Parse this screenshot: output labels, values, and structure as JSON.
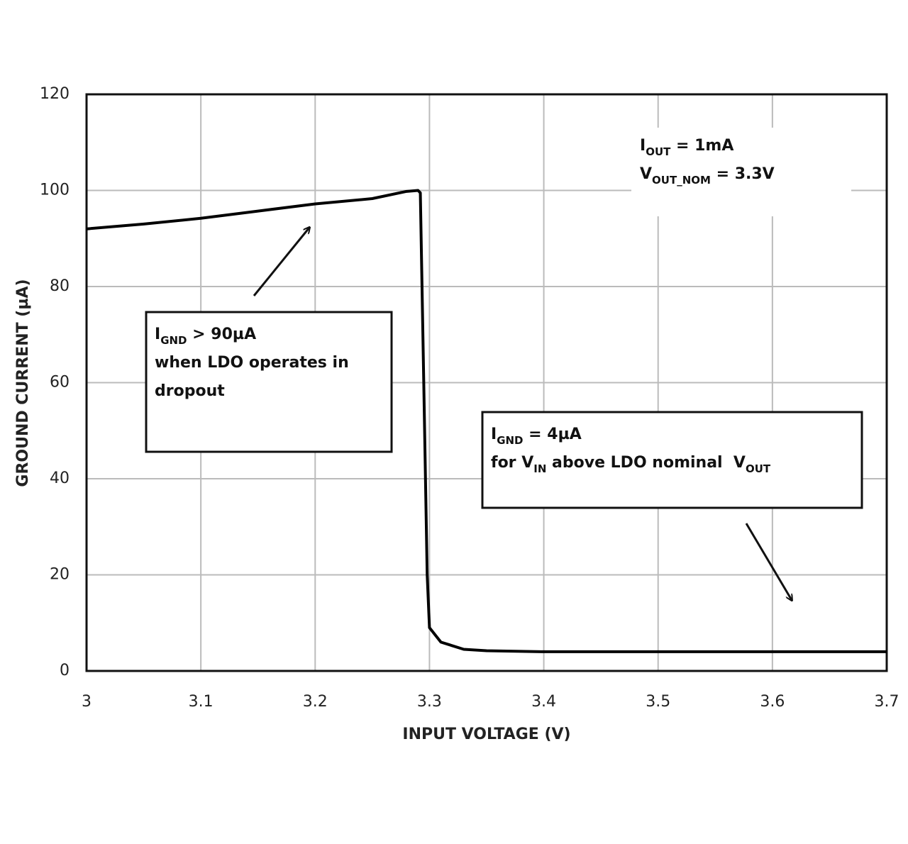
{
  "chart_data": {
    "type": "line",
    "x_label": "INPUT VOLTAGE (V)",
    "y_label": "GROUND CURRENT (µA)",
    "x": [
      3.0,
      3.05,
      3.1,
      3.15,
      3.2,
      3.25,
      3.28,
      3.29,
      3.292,
      3.295,
      3.298,
      3.3,
      3.31,
      3.33,
      3.35,
      3.4,
      3.5,
      3.6,
      3.7
    ],
    "values": [
      92,
      93,
      94.2,
      95.7,
      97.2,
      98.3,
      99.8,
      100,
      99.5,
      60,
      20,
      9,
      6,
      4.5,
      4.2,
      4,
      4,
      4,
      4
    ],
    "color": "#000000",
    "xlim": [
      3.0,
      3.7
    ],
    "xticks": [
      3,
      3.1,
      3.2,
      3.3,
      3.4,
      3.5,
      3.6,
      3.7
    ],
    "ylim": [
      0,
      120
    ],
    "yticks": [
      0,
      20,
      40,
      60,
      80,
      100,
      120
    ],
    "grid": true,
    "annotations": [
      {
        "lines": [
          [
            {
              "text": "I"
            },
            {
              "text": "OUT",
              "sub": true
            },
            {
              "text": " = 1mA"
            }
          ],
          [
            {
              "text": "V"
            },
            {
              "text": "OUT_NOM",
              "sub": true
            },
            {
              "text": " = 3.3V"
            }
          ]
        ]
      },
      {
        "lines": [
          [
            {
              "text": "I"
            },
            {
              "text": "GND",
              "sub": true
            },
            {
              "text": " > 90µA"
            }
          ],
          [
            {
              "text": "when LDO operates in"
            }
          ],
          [
            {
              "text": "dropout"
            }
          ]
        ]
      },
      {
        "lines": [
          [
            {
              "text": "I"
            },
            {
              "text": "GND",
              "sub": true
            },
            {
              "text": " = 4µA"
            }
          ],
          [
            {
              "text": "for V"
            },
            {
              "text": "IN",
              "sub": true
            },
            {
              "text": " above LDO nominal  V"
            },
            {
              "text": "OUT",
              "sub": true
            }
          ]
        ]
      }
    ]
  }
}
